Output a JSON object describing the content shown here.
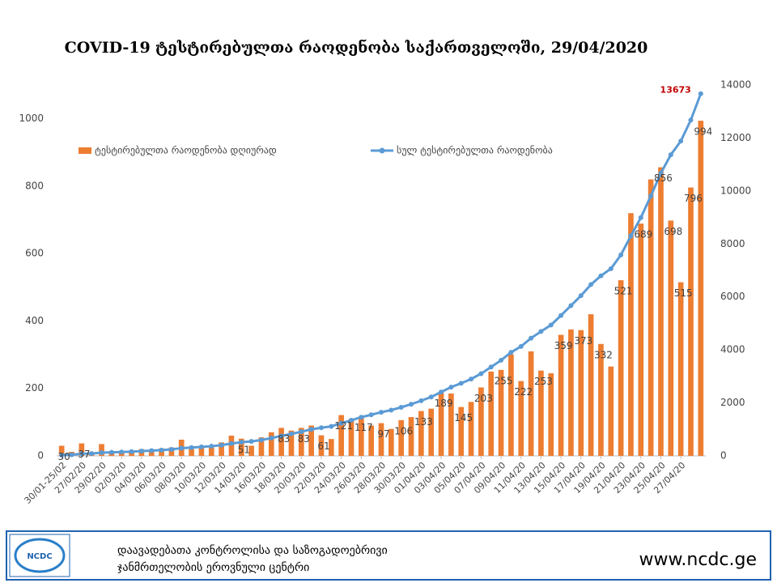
{
  "chart_data": {
    "type": "bar",
    "title": "COVID-19 ტესტირებულთა რაოდენობა საქართველოში, 29/04/2020",
    "categories": [
      "30/01-25/02",
      null,
      "27/02/20",
      null,
      "29/02/20",
      null,
      "02/03/20",
      null,
      "04/03/20",
      null,
      "06/03/20",
      null,
      "08/03/20",
      null,
      "10/03/20",
      null,
      "12/03/20",
      null,
      "14/03/20",
      null,
      "16/03/20",
      null,
      "18/03/20",
      null,
      "20/03/20",
      null,
      "22/03/20",
      null,
      "24/03/20",
      null,
      "26/03/20",
      null,
      "28/03/20",
      null,
      "30/03/20",
      null,
      "01/04/20",
      null,
      "03/04/20",
      null,
      "05/04/20",
      null,
      "07/04/20",
      null,
      "09/04/20",
      null,
      "11/04/20",
      null,
      "13/04/20",
      null,
      "15/04/20",
      null,
      "17/04/20",
      null,
      "19/04/20",
      null,
      "21/04/20",
      null,
      "23/04/20",
      null,
      "25/04/20",
      null,
      "27/04/20",
      null,
      null
    ],
    "series": [
      {
        "name": "ტესტირებულთა რაოდენობა დღიურად",
        "type": "bar",
        "color": "#ed7d31",
        "values": [
          30,
          12,
          37,
          8,
          35,
          10,
          15,
          12,
          20,
          18,
          22,
          25,
          48,
          20,
          28,
          25,
          40,
          60,
          51,
          30,
          55,
          70,
          83,
          75,
          83,
          90,
          61,
          50,
          121,
          110,
          117,
          90,
          97,
          80,
          106,
          115,
          133,
          140,
          189,
          185,
          145,
          160,
          203,
          250,
          255,
          301,
          222,
          310,
          253,
          245,
          359,
          375,
          373,
          420,
          332,
          265,
          521,
          720,
          689,
          820,
          856,
          698,
          515,
          796,
          994
        ],
        "value_labels": [
          "30",
          null,
          "37",
          null,
          null,
          null,
          null,
          null,
          null,
          null,
          null,
          null,
          null,
          null,
          null,
          null,
          null,
          null,
          "51",
          null,
          null,
          null,
          "83",
          null,
          "83",
          null,
          "61",
          null,
          "121",
          null,
          "117",
          null,
          "97",
          null,
          "106",
          null,
          "133",
          null,
          "189",
          null,
          "145",
          null,
          "203",
          null,
          "255",
          null,
          "222",
          null,
          "253",
          null,
          "359",
          null,
          "373",
          null,
          "332",
          null,
          "521",
          null,
          "689",
          null,
          "856",
          "698",
          "515",
          "796",
          "994"
        ]
      },
      {
        "name": "სულ ტესტირებულთა რაოდენობა",
        "type": "line",
        "axis": "y2",
        "color": "#5b9bd5",
        "values": [
          30,
          42,
          79,
          87,
          122,
          132,
          147,
          159,
          179,
          197,
          219,
          244,
          292,
          312,
          340,
          365,
          405,
          465,
          516,
          546,
          601,
          671,
          754,
          829,
          912,
          1002,
          1063,
          1113,
          1234,
          1344,
          1461,
          1551,
          1648,
          1728,
          1834,
          1949,
          2082,
          2222,
          2411,
          2596,
          2741,
          2901,
          3104,
          3354,
          3609,
          3910,
          4132,
          4442,
          4695,
          4940,
          5299,
          5674,
          6047,
          6467,
          6799,
          7064,
          7585,
          8305,
          8994,
          9814,
          10670,
          11368,
          11883,
          12679,
          13673
        ],
        "value_labels": [
          null,
          null,
          null,
          null,
          null,
          null,
          null,
          null,
          null,
          null,
          null,
          null,
          null,
          null,
          null,
          null,
          null,
          null,
          null,
          null,
          null,
          null,
          null,
          null,
          null,
          null,
          null,
          null,
          null,
          null,
          null,
          null,
          null,
          null,
          null,
          null,
          null,
          null,
          null,
          null,
          null,
          null,
          null,
          null,
          null,
          null,
          null,
          null,
          null,
          null,
          null,
          null,
          null,
          null,
          null,
          null,
          null,
          null,
          null,
          null,
          null,
          null,
          null,
          null,
          "13673"
        ]
      }
    ],
    "ylim": [
      0,
      1100
    ],
    "yticks": [
      0,
      200,
      400,
      600,
      800,
      1000
    ],
    "y2lim": [
      0,
      14000
    ],
    "y2ticks": [
      0,
      2000,
      4000,
      6000,
      8000,
      10000,
      12000,
      14000
    ],
    "grid": false,
    "legend": "top"
  },
  "footer": {
    "logo": "NCDC",
    "lines": [
      "დაავადებათა კონტროლისა და საზოგადოებრივი",
      "ჯანმრთელობის ეროვნული ცენტრი"
    ],
    "url": "www.ncdc.ge"
  }
}
